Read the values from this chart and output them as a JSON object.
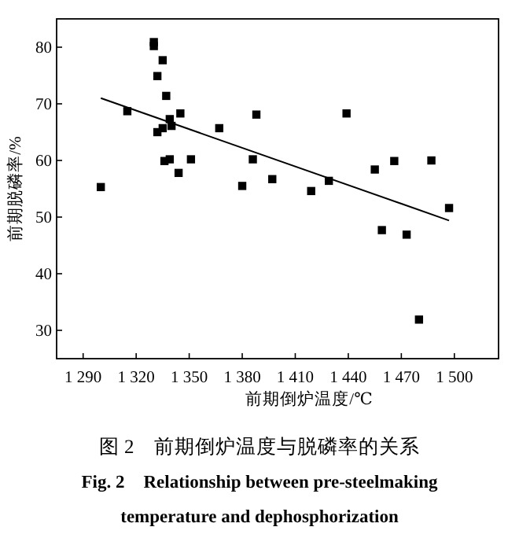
{
  "chart_data": {
    "type": "scatter",
    "xlabel": "前期倒炉温度/℃",
    "ylabel": "前期脱磷率/%",
    "xlim": [
      1275,
      1525
    ],
    "ylim": [
      25,
      85
    ],
    "xticks": [
      {
        "value": 1290,
        "label": "1 290"
      },
      {
        "value": 1320,
        "label": "1 320"
      },
      {
        "value": 1350,
        "label": "1 350"
      },
      {
        "value": 1380,
        "label": "1 380"
      },
      {
        "value": 1410,
        "label": "1 410"
      },
      {
        "value": 1440,
        "label": "1 440"
      },
      {
        "value": 1470,
        "label": "1 470"
      },
      {
        "value": 1500,
        "label": "1 500"
      }
    ],
    "yticks": [
      30,
      40,
      50,
      60,
      70,
      80
    ],
    "grid": false,
    "x": [
      1300,
      1315,
      1330,
      1330,
      1335,
      1332,
      1337,
      1332,
      1335,
      1336,
      1339,
      1339,
      1340,
      1345,
      1344,
      1351,
      1367,
      1380,
      1386,
      1388,
      1397,
      1419,
      1429,
      1439,
      1455,
      1459,
      1466,
      1473,
      1480,
      1487,
      1497
    ],
    "series": [
      {
        "color": "#000000",
        "marker": "square",
        "values": [
          55.3,
          68.7,
          80.9,
          80.2,
          77.7,
          74.9,
          71.4,
          65.0,
          65.7,
          59.9,
          60.2,
          67.3,
          66.1,
          68.3,
          57.8,
          60.2,
          65.7,
          55.5,
          60.2,
          68.1,
          56.7,
          54.6,
          56.4,
          68.3,
          58.4,
          47.7,
          59.9,
          46.9,
          31.9,
          60.0,
          51.6
        ]
      },
      {
        "type": "line",
        "color": "#000000",
        "marker": "none",
        "x": [
          1300,
          1497
        ],
        "values": [
          71.0,
          49.4
        ]
      }
    ],
    "annotations": [
      "图 2　前期倒炉温度与脱磷率的关系",
      "**Fig. 2　Relationship between pre-steelmaking temperature and dephosphorization**"
    ]
  }
}
